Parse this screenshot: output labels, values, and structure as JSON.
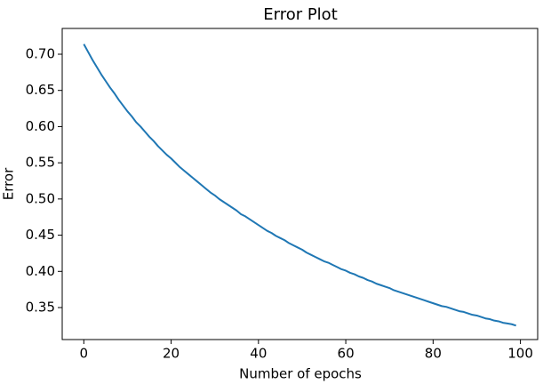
{
  "chart_data": {
    "type": "line",
    "title": "Error Plot",
    "x_label": "Number of epochs",
    "y_label": "Error",
    "x": [
      0,
      1,
      2,
      3,
      4,
      5,
      6,
      7,
      8,
      9,
      10,
      11,
      12,
      13,
      14,
      15,
      16,
      17,
      18,
      19,
      20,
      21,
      22,
      23,
      24,
      25,
      26,
      27,
      28,
      29,
      30,
      31,
      32,
      33,
      34,
      35,
      36,
      37,
      38,
      39,
      40,
      41,
      42,
      43,
      44,
      45,
      46,
      47,
      48,
      49,
      50,
      51,
      52,
      53,
      54,
      55,
      56,
      57,
      58,
      59,
      60,
      61,
      62,
      63,
      64,
      65,
      66,
      67,
      68,
      69,
      70,
      71,
      72,
      73,
      74,
      75,
      76,
      77,
      78,
      79,
      80,
      81,
      82,
      83,
      84,
      85,
      86,
      87,
      88,
      89,
      90,
      91,
      92,
      93,
      94,
      95,
      96,
      97,
      98,
      99
    ],
    "series": [
      {
        "color": "#1f77b4",
        "values": [
          0.714,
          0.703,
          0.692,
          0.682,
          0.672,
          0.663,
          0.654,
          0.646,
          0.637,
          0.629,
          0.621,
          0.614,
          0.606,
          0.6,
          0.593,
          0.586,
          0.58,
          0.573,
          0.567,
          0.561,
          0.556,
          0.55,
          0.544,
          0.539,
          0.534,
          0.529,
          0.524,
          0.519,
          0.514,
          0.509,
          0.505,
          0.5,
          0.496,
          0.492,
          0.488,
          0.484,
          0.479,
          0.476,
          0.472,
          0.468,
          0.464,
          0.46,
          0.456,
          0.453,
          0.449,
          0.446,
          0.443,
          0.439,
          0.436,
          0.433,
          0.43,
          0.426,
          0.423,
          0.42,
          0.417,
          0.414,
          0.412,
          0.409,
          0.406,
          0.403,
          0.401,
          0.398,
          0.396,
          0.393,
          0.391,
          0.388,
          0.386,
          0.383,
          0.381,
          0.379,
          0.377,
          0.374,
          0.372,
          0.37,
          0.368,
          0.366,
          0.364,
          0.362,
          0.36,
          0.358,
          0.356,
          0.354,
          0.352,
          0.351,
          0.349,
          0.347,
          0.345,
          0.344,
          0.342,
          0.34,
          0.339,
          0.337,
          0.335,
          0.334,
          0.332,
          0.331,
          0.329,
          0.328,
          0.327,
          0.325
        ]
      }
    ],
    "xlim": [
      -4.95,
      103.95
    ],
    "xticks": [
      0,
      20,
      40,
      60,
      80,
      100
    ],
    "ylim": [
      0.3058,
      0.7356
    ],
    "yticks": [
      {
        "value": 0.35,
        "label": "0.35"
      },
      {
        "value": 0.4,
        "label": "0.40"
      },
      {
        "value": 0.45,
        "label": "0.45"
      },
      {
        "value": 0.5,
        "label": "0.50"
      },
      {
        "value": 0.55,
        "label": "0.55"
      },
      {
        "value": 0.6,
        "label": "0.60"
      },
      {
        "value": 0.65,
        "label": "0.65"
      },
      {
        "value": 0.7,
        "label": "0.70"
      }
    ],
    "grid": false
  }
}
